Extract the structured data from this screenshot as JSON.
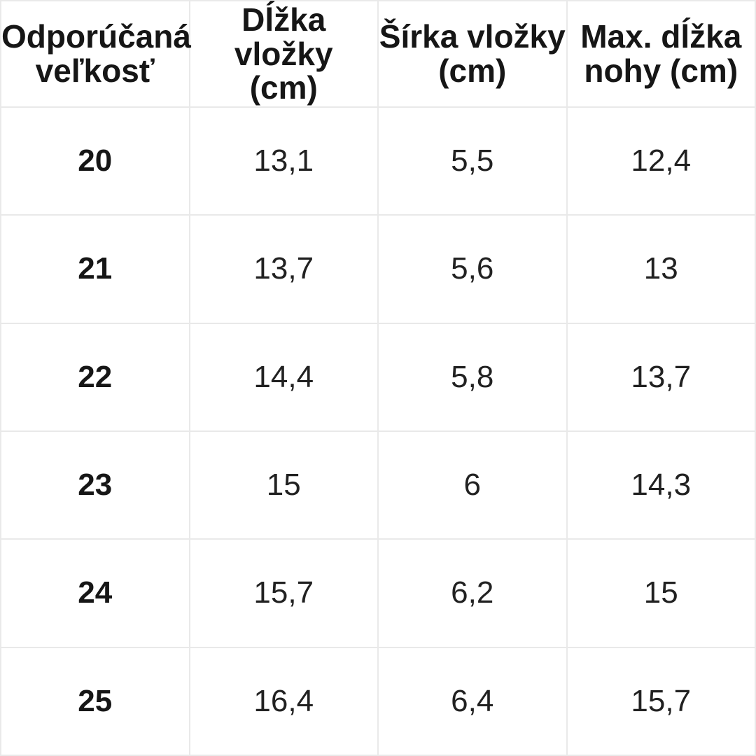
{
  "style": {
    "background": "#ffffff",
    "border_color": "#e9e9e9",
    "text_color": "#1d1d1d"
  },
  "chart_data": {
    "type": "table",
    "columns": [
      {
        "line1": "Odporúčaná",
        "line2": "veľkosť"
      },
      {
        "line1": "Dĺžka vložky",
        "line2": "(cm)"
      },
      {
        "line1": "Šírka vložky",
        "line2": "(cm)"
      },
      {
        "line1": "Max. dĺžka",
        "line2": "nohy (cm)"
      }
    ],
    "rows": [
      [
        "20",
        "13,1",
        "5,5",
        "12,4"
      ],
      [
        "21",
        "13,7",
        "5,6",
        "13"
      ],
      [
        "22",
        "14,4",
        "5,8",
        "13,7"
      ],
      [
        "23",
        "15",
        "6",
        "14,3"
      ],
      [
        "24",
        "15,7",
        "6,2",
        "15"
      ],
      [
        "25",
        "16,4",
        "6,4",
        "15,7"
      ]
    ]
  }
}
